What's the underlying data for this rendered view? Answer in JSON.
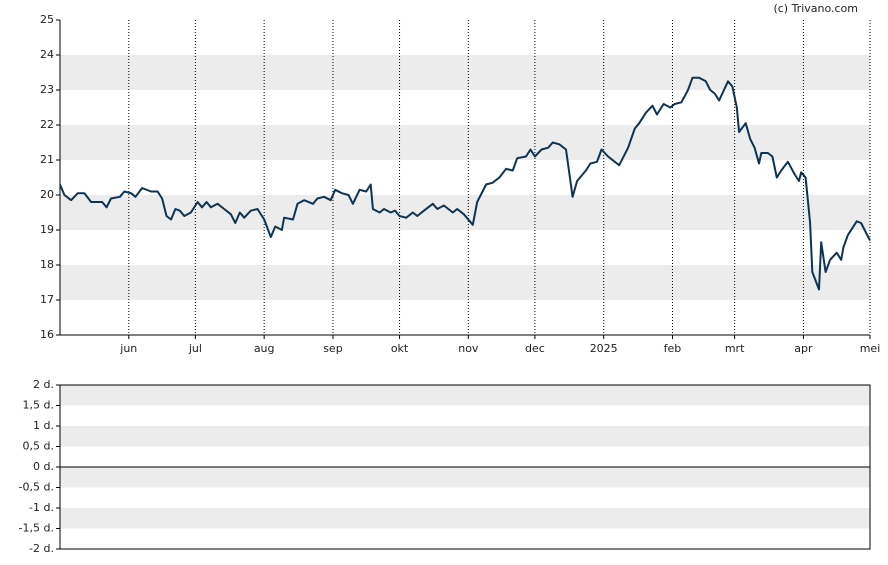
{
  "chart_data": [
    {
      "type": "line",
      "watermark": "(c) Trivano.com",
      "xlim": [
        0,
        365
      ],
      "xticks": [
        {
          "value": 31,
          "label": "jun"
        },
        {
          "value": 61,
          "label": "jul"
        },
        {
          "value": 92,
          "label": "aug"
        },
        {
          "value": 123,
          "label": "sep"
        },
        {
          "value": 153,
          "label": "okt"
        },
        {
          "value": 184,
          "label": "nov"
        },
        {
          "value": 214,
          "label": "dec"
        },
        {
          "value": 245,
          "label": "2025"
        },
        {
          "value": 276,
          "label": "feb"
        },
        {
          "value": 304,
          "label": "mrt"
        },
        {
          "value": 335,
          "label": "apr"
        },
        {
          "value": 365,
          "label": "mei"
        }
      ],
      "ylim": [
        16,
        25
      ],
      "yticks": [
        16,
        17,
        18,
        19,
        20,
        21,
        22,
        23,
        24,
        25
      ],
      "grid": true,
      "series": [
        {
          "color": "#0d3455",
          "x": [
            0,
            2,
            5,
            8,
            11,
            14,
            19,
            21,
            23,
            27,
            29,
            32,
            34,
            37,
            41,
            44,
            46,
            48,
            50,
            52,
            54,
            56,
            59,
            62,
            64,
            66,
            68,
            71,
            74,
            77,
            79,
            81,
            83,
            86,
            89,
            92,
            95,
            97,
            100,
            101,
            105,
            107,
            110,
            114,
            116,
            119,
            122,
            124,
            127,
            130,
            132,
            135,
            138,
            140,
            141,
            144,
            146,
            149,
            151,
            153,
            156,
            159,
            161,
            164,
            168,
            170,
            173,
            177,
            179,
            182,
            186,
            188,
            192,
            195,
            198,
            201,
            204,
            206,
            210,
            212,
            214,
            217,
            220,
            222,
            225,
            228,
            230,
            231,
            233,
            237,
            239,
            242,
            244,
            247,
            250,
            252,
            256,
            259,
            261,
            264,
            267,
            269,
            272,
            275,
            277,
            280,
            283,
            285,
            288,
            291,
            293,
            295,
            297,
            301,
            303,
            305,
            306,
            309,
            311,
            313,
            315,
            316,
            319,
            321,
            323,
            325,
            328,
            331,
            333,
            334,
            336,
            338,
            339,
            342,
            343,
            345,
            347,
            350,
            352,
            353,
            355,
            359,
            361,
            365
          ],
          "values": [
            20.3,
            20.0,
            19.85,
            20.05,
            20.05,
            19.8,
            19.8,
            19.65,
            19.9,
            19.95,
            20.1,
            20.05,
            19.95,
            20.2,
            20.1,
            20.1,
            19.9,
            19.4,
            19.3,
            19.6,
            19.55,
            19.4,
            19.5,
            19.8,
            19.65,
            19.8,
            19.65,
            19.75,
            19.6,
            19.45,
            19.2,
            19.5,
            19.35,
            19.55,
            19.6,
            19.3,
            18.8,
            19.1,
            19.0,
            19.35,
            19.3,
            19.75,
            19.85,
            19.75,
            19.9,
            19.95,
            19.85,
            20.15,
            20.05,
            20.0,
            19.75,
            20.15,
            20.1,
            20.3,
            19.6,
            19.5,
            19.6,
            19.5,
            19.55,
            19.4,
            19.35,
            19.5,
            19.4,
            19.55,
            19.75,
            19.6,
            19.7,
            19.5,
            19.6,
            19.45,
            19.15,
            19.8,
            20.3,
            20.35,
            20.5,
            20.75,
            20.7,
            21.05,
            21.1,
            21.3,
            21.1,
            21.3,
            21.35,
            21.5,
            21.45,
            21.3,
            20.4,
            19.95,
            20.4,
            20.7,
            20.9,
            20.95,
            21.3,
            21.1,
            20.95,
            20.85,
            21.35,
            21.9,
            22.05,
            22.35,
            22.55,
            22.3,
            22.6,
            22.5,
            22.6,
            22.65,
            23.0,
            23.35,
            23.35,
            23.25,
            23.0,
            22.9,
            22.7,
            23.25,
            23.1,
            22.5,
            21.8,
            22.05,
            21.6,
            21.35,
            20.9,
            21.2,
            21.2,
            21.1,
            20.5,
            20.7,
            20.95,
            20.6,
            20.4,
            20.65,
            20.5,
            19.2,
            17.8,
            17.3,
            18.65,
            17.8,
            18.15,
            18.35,
            18.15,
            18.5,
            18.85,
            19.25,
            19.2,
            18.7
          ]
        }
      ]
    },
    {
      "type": "line",
      "ylim": [
        -2,
        2
      ],
      "yticks": [
        {
          "value": -2,
          "label": "-2 d."
        },
        {
          "value": -1.5,
          "label": "-1,5 d."
        },
        {
          "value": -1,
          "label": "-1 d."
        },
        {
          "value": -0.5,
          "label": "-0,5 d."
        },
        {
          "value": 0,
          "label": "0 d."
        },
        {
          "value": 0.5,
          "label": "0,5 d."
        },
        {
          "value": 1,
          "label": "1 d."
        },
        {
          "value": 1.5,
          "label": "1,5 d."
        },
        {
          "value": 2,
          "label": "2 d."
        }
      ],
      "grid": true,
      "series": []
    }
  ]
}
